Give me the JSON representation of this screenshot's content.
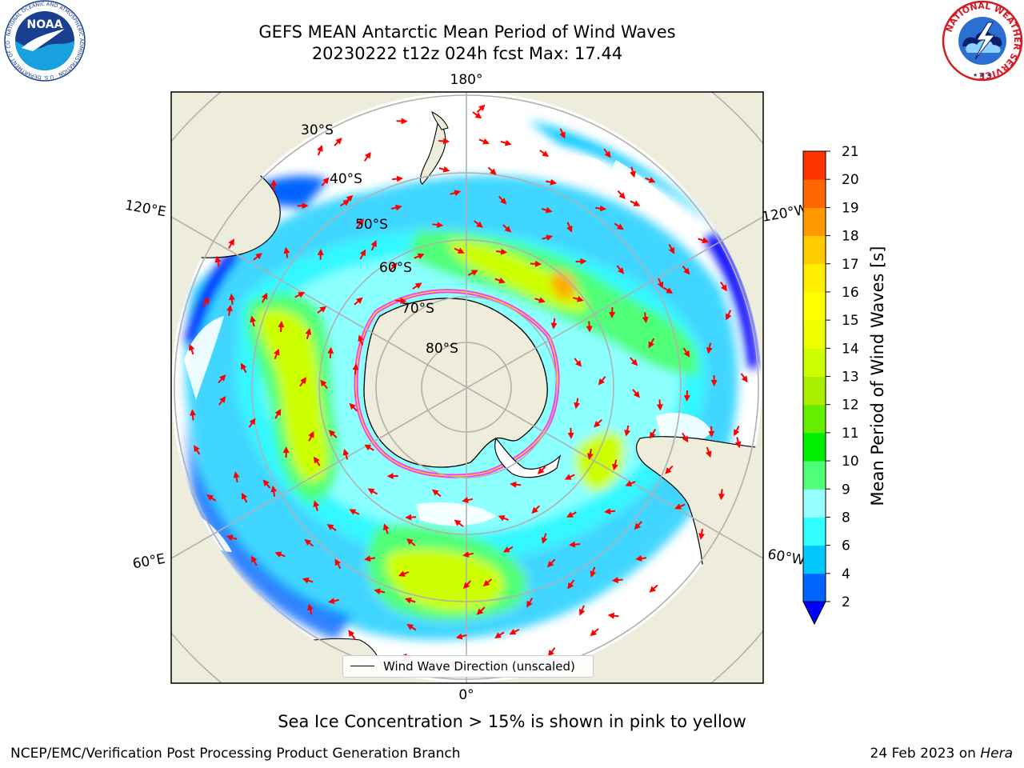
{
  "title": {
    "line1": "GEFS MEAN Antarctic Mean Period of Wind Waves",
    "line2": "20230222 t12z 024h fcst   Max: 17.44"
  },
  "map": {
    "projection": "south-polar-stereographic",
    "lat_labels": [
      "30°S",
      "40°S",
      "50°S",
      "60°S",
      "70°S",
      "80°S"
    ],
    "lon_labels": {
      "top": "180°",
      "bottom": "0°",
      "left_upper": "120°E",
      "left_lower": "60°E",
      "right_upper": "120°W",
      "right_lower": "60°W"
    },
    "colors": {
      "land": "#eeecdb",
      "coast": "#000000",
      "gridline": "#b0b0b0",
      "sea_ice": "#ff33ff",
      "arrows": "#ff0000"
    },
    "legend_label": "Wind Wave Direction (unscaled)"
  },
  "colorbar": {
    "title": "Mean Period of Wind Waves [s]",
    "ticks": [
      "2",
      "4",
      "6",
      "8",
      "9",
      "10",
      "11",
      "12",
      "13",
      "14",
      "15",
      "16",
      "17",
      "18",
      "19",
      "20",
      "21"
    ],
    "colors": [
      "#0064ff",
      "#00c8ff",
      "#32ffff",
      "#96ffff",
      "#50ff78",
      "#00ee00",
      "#66ee00",
      "#aaee00",
      "#ccff00",
      "#eeff00",
      "#ffff00",
      "#ffee00",
      "#ffcc00",
      "#ff9900",
      "#ff6600",
      "#ff3300",
      "#ff0000"
    ],
    "extend": "min",
    "extend_color": "#0000ff"
  },
  "note": "Sea Ice Concentration > 15% is shown in pink to yellow",
  "footer": {
    "left": "NCEP/EMC/Verification Post Processing Product Generation Branch",
    "right_prefix": "24 Feb 2023 on ",
    "right_italic": "Hera"
  },
  "logos": {
    "noaa_text": "NOAA",
    "noaa_ring": "NATIONAL OCEANIC AND ATMOSPHERIC ADMINISTRATION · U.S. DEPARTMENT OF COMMERCE ·",
    "nws_ring": "NATIONAL WEATHER SERVICE"
  }
}
